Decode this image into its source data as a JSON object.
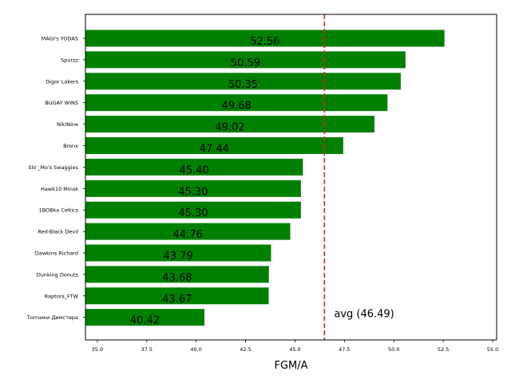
{
  "chart_data": {
    "type": "bar",
    "orientation": "horizontal",
    "categories": [
      "MAGI's YODAS",
      "Spurzz",
      "Digor Lakers",
      "BUGAY WINS",
      "NikiNine",
      "Bronx",
      "Slo'_Mo's Swaggies",
      "Hawk10 Minsk",
      "1BOBka Celtics",
      "Red-Black Devil",
      "Dawkins Richard",
      "Dunking Donuts",
      "Raptors_FTW",
      "Топчики Димстера"
    ],
    "values": [
      52.56,
      50.59,
      50.35,
      49.68,
      49.02,
      47.44,
      45.4,
      45.3,
      45.3,
      44.76,
      43.79,
      43.68,
      43.67,
      40.42
    ],
    "value_labels": [
      "52.56",
      "50.59",
      "50.35",
      "49.68",
      "49.02",
      "47.44",
      "45.40",
      "45.30",
      "45.30",
      "44.76",
      "43.79",
      "43.68",
      "43.67",
      "40.42"
    ],
    "xlabel": "FGM/A",
    "xlim": [
      34.4,
      55.2
    ],
    "xticks": [
      35.0,
      37.5,
      40.0,
      42.5,
      45.0,
      47.5,
      50.0,
      52.5,
      55.0
    ],
    "xtick_labels": [
      "35.0",
      "37.5",
      "40.0",
      "42.5",
      "45.0",
      "47.5",
      "50.0",
      "52.5",
      "55.0"
    ],
    "reference_line": {
      "value": 46.49,
      "label": "avg (46.49)",
      "style": "dashed"
    },
    "grid": false,
    "colors": {
      "bar": "#008000",
      "avg_line": "#d62728",
      "axis": "#000000"
    }
  }
}
